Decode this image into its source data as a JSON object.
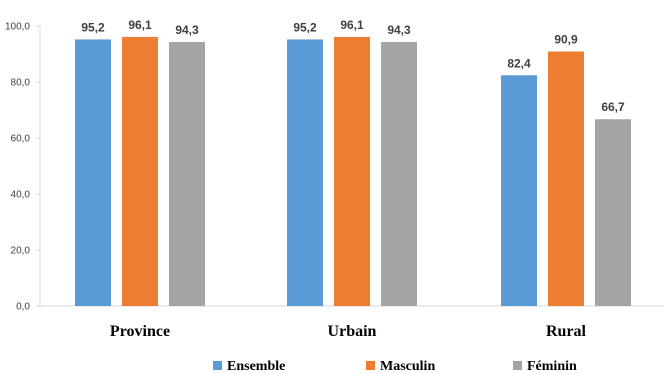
{
  "chart_data": {
    "type": "bar",
    "categories": [
      "Province",
      "Urbain",
      "Rural"
    ],
    "series": [
      {
        "name": "Ensemble",
        "values": [
          95.2,
          95.2,
          82.4
        ],
        "labels": [
          "95,2",
          "95,2",
          "82,4"
        ]
      },
      {
        "name": "Masculin",
        "values": [
          96.1,
          96.1,
          90.9
        ],
        "labels": [
          "96,1",
          "96,1",
          "90,9"
        ]
      },
      {
        "name": "Féminin",
        "values": [
          94.3,
          94.3,
          66.7
        ],
        "labels": [
          "94,3",
          "94,3",
          "66,7"
        ]
      }
    ],
    "colors": [
      "#5b9bd5",
      "#ed7d31",
      "#a5a5a5"
    ],
    "ylim": [
      0,
      100
    ],
    "yticks": [
      0,
      20,
      40,
      60,
      80,
      100
    ],
    "ytick_labels": [
      "0,0",
      "20,0",
      "40,0",
      "60,0",
      "80,0",
      "100,0"
    ],
    "grid": false,
    "legend_position": "bottom",
    "title": "",
    "xlabel": "",
    "ylabel": ""
  }
}
